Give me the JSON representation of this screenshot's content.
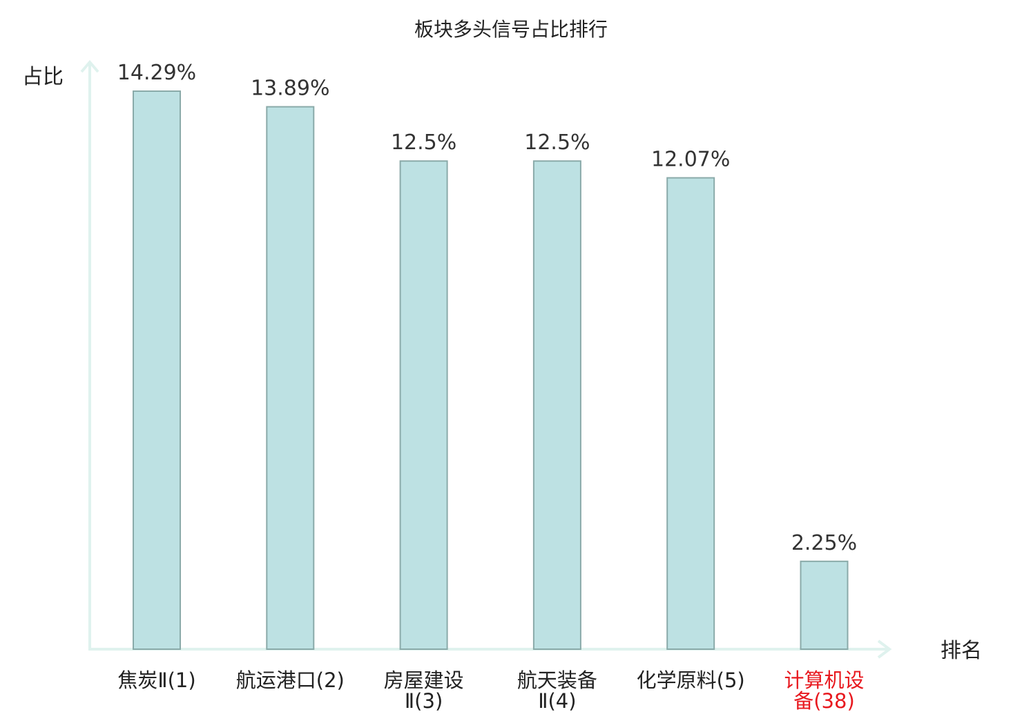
{
  "chart_data": {
    "type": "bar",
    "title": "板块多头信号占比排行",
    "ylabel": "占比",
    "xlabel": "排名",
    "categories": [
      [
        "焦炭Ⅱ(1)"
      ],
      [
        "航运港口(2)"
      ],
      [
        "房屋建设",
        "Ⅱ(3)"
      ],
      [
        "航天装备",
        "Ⅱ(4)"
      ],
      [
        "化学原料(5)"
      ],
      [
        "计算机设",
        "备(38)"
      ]
    ],
    "values": [
      14.29,
      13.89,
      12.5,
      12.5,
      12.07,
      2.25
    ],
    "data_labels": [
      "14.29%",
      "13.89%",
      "12.5%",
      "12.5%",
      "12.07%",
      "2.25%"
    ],
    "highlight_index": 5,
    "ylim": [
      0,
      15
    ],
    "grid": false,
    "legend": "none",
    "colors": {
      "bar_fill": "#bde1e3",
      "bar_stroke": "#8aaaa9",
      "axis": "#dff2ee",
      "text": "#222222",
      "value_text": "#333333",
      "highlight": "#e8191f"
    }
  }
}
